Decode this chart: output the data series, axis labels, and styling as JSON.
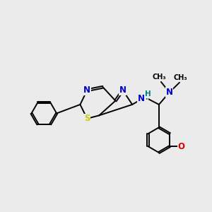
{
  "background_color": "#ebebeb",
  "bond_color": "#000000",
  "N_color": "#0000cc",
  "S_color": "#cccc00",
  "O_color": "#dd0000",
  "H_color": "#008080",
  "figsize": [
    3.0,
    3.0
  ],
  "dpi": 100,
  "xlim": [
    0,
    10
  ],
  "ylim": [
    0,
    10
  ]
}
